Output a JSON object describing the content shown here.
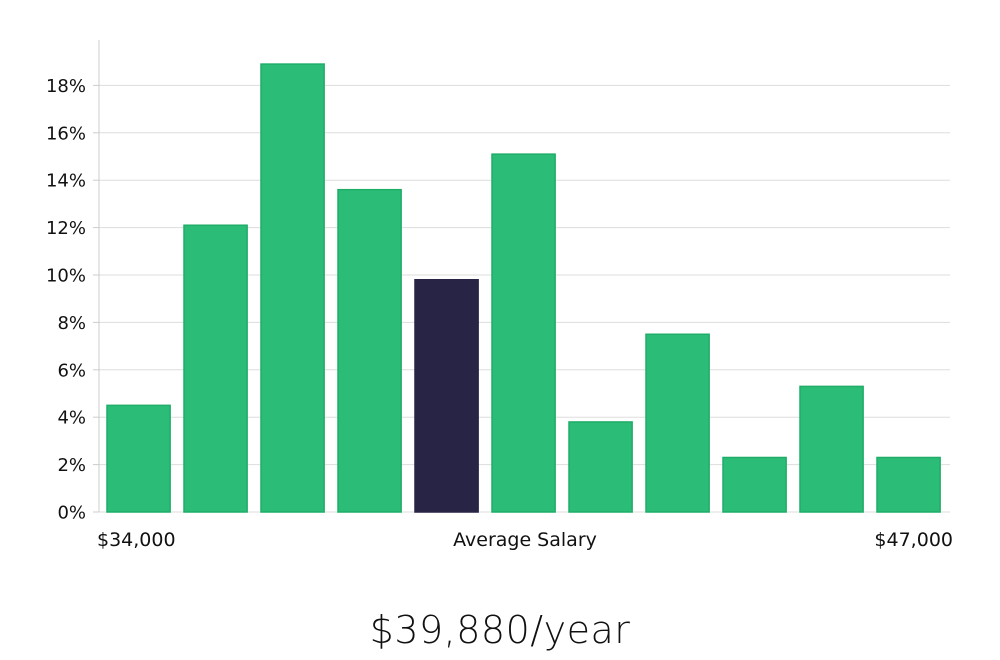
{
  "chart_data": {
    "type": "bar",
    "title": "",
    "xlabel": "Average Salary",
    "ylabel": "",
    "ylim": [
      0,
      20
    ],
    "y_ticks": [
      0,
      2,
      4,
      6,
      8,
      10,
      12,
      14,
      16,
      18
    ],
    "y_tick_suffix": "%",
    "x_range_labels": {
      "min": "$34,000",
      "max": "$47,000"
    },
    "values": [
      4.5,
      12.1,
      18.9,
      13.6,
      9.8,
      15.1,
      3.8,
      7.5,
      2.3,
      5.3,
      2.3
    ],
    "highlight_index": 4,
    "colors": {
      "bar": "#2bbd77",
      "bar_border": "#1fad68",
      "highlight": "#272445",
      "grid": "#dddddd",
      "axis": "#cccccc"
    },
    "grid": true
  },
  "labels": {
    "x_min": "$34,000",
    "x_center": "Average Salary",
    "x_max": "$47,000"
  },
  "salary_text": "$39,880/year"
}
